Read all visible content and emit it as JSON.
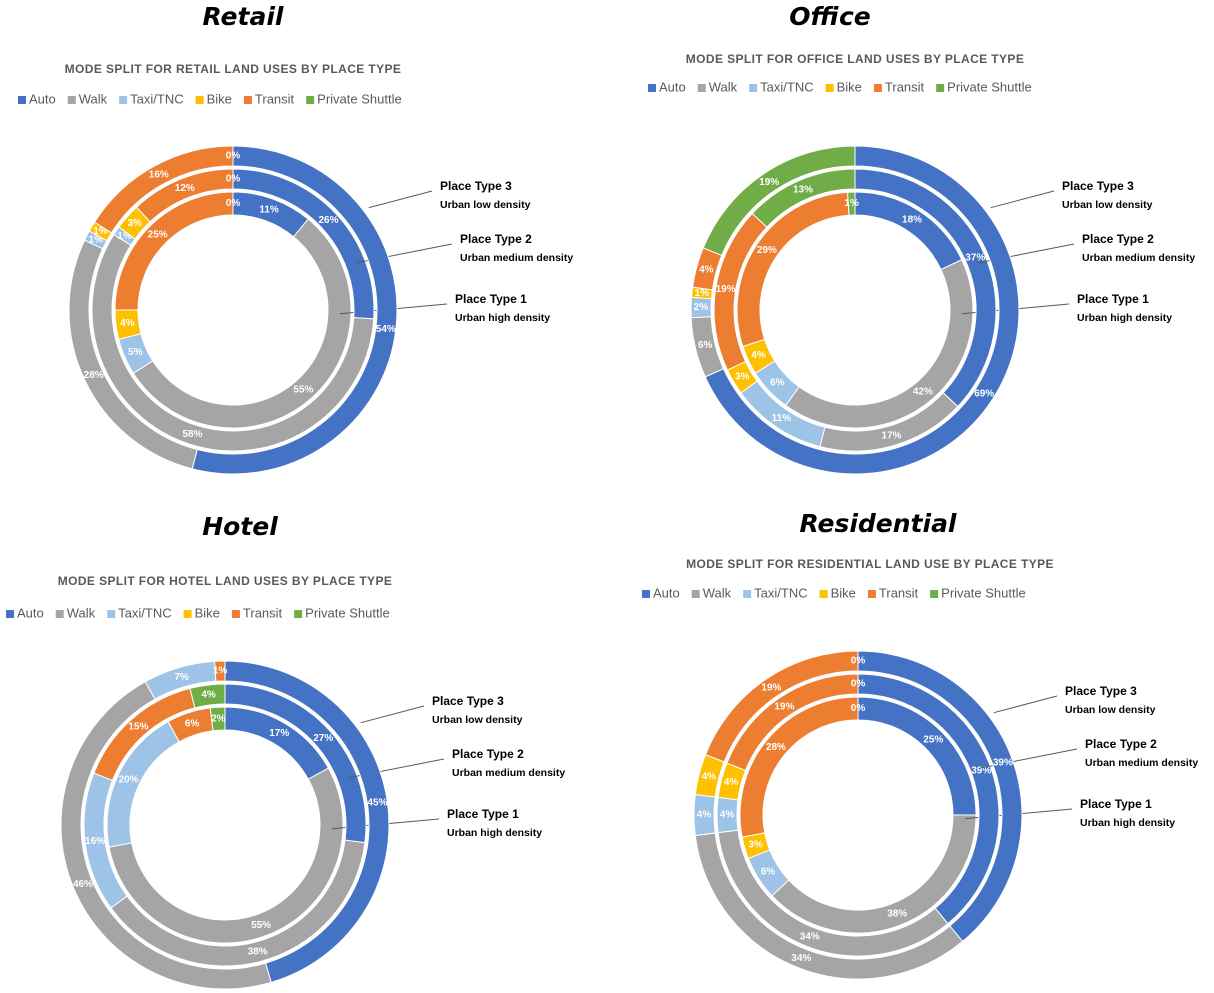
{
  "chart_data": [
    {
      "type": "donut",
      "heading": "Retail",
      "title": "MODE SPLIT FOR RETAIL LAND USES BY PLACE TYPE",
      "categories": [
        "Auto",
        "Walk",
        "Taxi/TNC",
        "Bike",
        "Transit",
        "Private Shuttle"
      ],
      "colors": [
        "#4472c4",
        "#a5a5a5",
        "#9dc3e6",
        "#ffc000",
        "#ed7d31",
        "#70ad47"
      ],
      "series": [
        {
          "name": "Place Type 1",
          "subtitle": "Urban high density",
          "values": [
            11,
            55,
            5,
            4,
            25,
            0
          ],
          "value_labels": [
            "11%",
            "55%",
            "5%",
            "4%",
            "25%",
            "0%"
          ]
        },
        {
          "name": "Place Type 2",
          "subtitle": "Urban medium density",
          "values": [
            26,
            58,
            1,
            3,
            12,
            0
          ],
          "value_labels": [
            "26%",
            "58%",
            "1%",
            "3%",
            "12%",
            "0%"
          ]
        },
        {
          "name": "Place Type 3",
          "subtitle": "Urban low density",
          "values": [
            54,
            28,
            1,
            1,
            16,
            0
          ],
          "value_labels": [
            "54%",
            "28%",
            "1%",
            "1%",
            "16%",
            "0%"
          ]
        }
      ]
    },
    {
      "type": "donut",
      "heading": "Office",
      "title": "MODE SPLIT FOR OFFICE LAND USES BY PLACE TYPE",
      "categories": [
        "Auto",
        "Walk",
        "Taxi/TNC",
        "Bike",
        "Transit",
        "Private Shuttle"
      ],
      "colors": [
        "#4472c4",
        "#a5a5a5",
        "#9dc3e6",
        "#ffc000",
        "#ed7d31",
        "#70ad47"
      ],
      "series": [
        {
          "name": "Place Type 1",
          "subtitle": "Urban high density",
          "values": [
            18,
            42,
            6,
            4,
            29,
            1
          ],
          "value_labels": [
            "18%",
            "42%",
            "6%",
            "4%",
            "29%",
            "1%"
          ]
        },
        {
          "name": "Place Type 2",
          "subtitle": "Urban medium density",
          "values": [
            37,
            17,
            11,
            3,
            19,
            13
          ],
          "value_labels": [
            "37%",
            "17%",
            "11%",
            "3%",
            "19%",
            "13%"
          ]
        },
        {
          "name": "Place Type 3",
          "subtitle": "Urban low density",
          "values": [
            69,
            6,
            2,
            1,
            4,
            19
          ],
          "value_labels": [
            "69%",
            "6%",
            "2%",
            "1%",
            "4%",
            "19%"
          ]
        }
      ]
    },
    {
      "type": "donut",
      "heading": "Hotel",
      "title": "MODE SPLIT FOR HOTEL LAND USES BY PLACE TYPE",
      "categories": [
        "Auto",
        "Walk",
        "Taxi/TNC",
        "Bike",
        "Transit",
        "Private Shuttle"
      ],
      "colors": [
        "#4472c4",
        "#a5a5a5",
        "#9dc3e6",
        "#ffc000",
        "#ed7d31",
        "#70ad47"
      ],
      "series": [
        {
          "name": "Place Type 1",
          "subtitle": "Urban high density",
          "values": [
            17,
            55,
            20,
            null,
            6,
            2
          ],
          "value_labels": [
            "17%",
            "55%",
            "20%",
            null,
            "6%",
            "2%"
          ]
        },
        {
          "name": "Place Type 2",
          "subtitle": "Urban medium density",
          "values": [
            27,
            38,
            16,
            null,
            15,
            4
          ],
          "value_labels": [
            "27%",
            "38%",
            "16%",
            null,
            "15%",
            "4%"
          ]
        },
        {
          "name": "Place Type 3",
          "subtitle": "Urban low density",
          "values": [
            45,
            46,
            7,
            null,
            1,
            null
          ],
          "value_labels": [
            "45%",
            "46%",
            "7%",
            null,
            "1%",
            null
          ]
        }
      ]
    },
    {
      "type": "donut",
      "heading": "Residential",
      "title": "MODE SPLIT FOR RESIDENTIAL LAND USE BY PLACE TYPE",
      "categories": [
        "Auto",
        "Walk",
        "Taxi/TNC",
        "Bike",
        "Transit",
        "Private Shuttle"
      ],
      "colors": [
        "#4472c4",
        "#a5a5a5",
        "#9dc3e6",
        "#ffc000",
        "#ed7d31",
        "#70ad47"
      ],
      "series": [
        {
          "name": "Place Type 1",
          "subtitle": "Urban high density",
          "values": [
            25,
            38,
            6,
            3,
            28,
            0
          ],
          "value_labels": [
            "25%",
            "38%",
            "6%",
            "3%",
            "28%",
            "0%"
          ]
        },
        {
          "name": "Place Type 2",
          "subtitle": "Urban medium density",
          "values": [
            39,
            34,
            4,
            4,
            19,
            0
          ],
          "value_labels": [
            "39%",
            "34%",
            "4%",
            "4%",
            "19%",
            "0%"
          ]
        },
        {
          "name": "Place Type 3",
          "subtitle": "Urban low density",
          "values": [
            39,
            34,
            4,
            4,
            19,
            0
          ],
          "value_labels": [
            "39%",
            "34%",
            "4%",
            "4%",
            "19%",
            "0%"
          ]
        }
      ]
    }
  ]
}
